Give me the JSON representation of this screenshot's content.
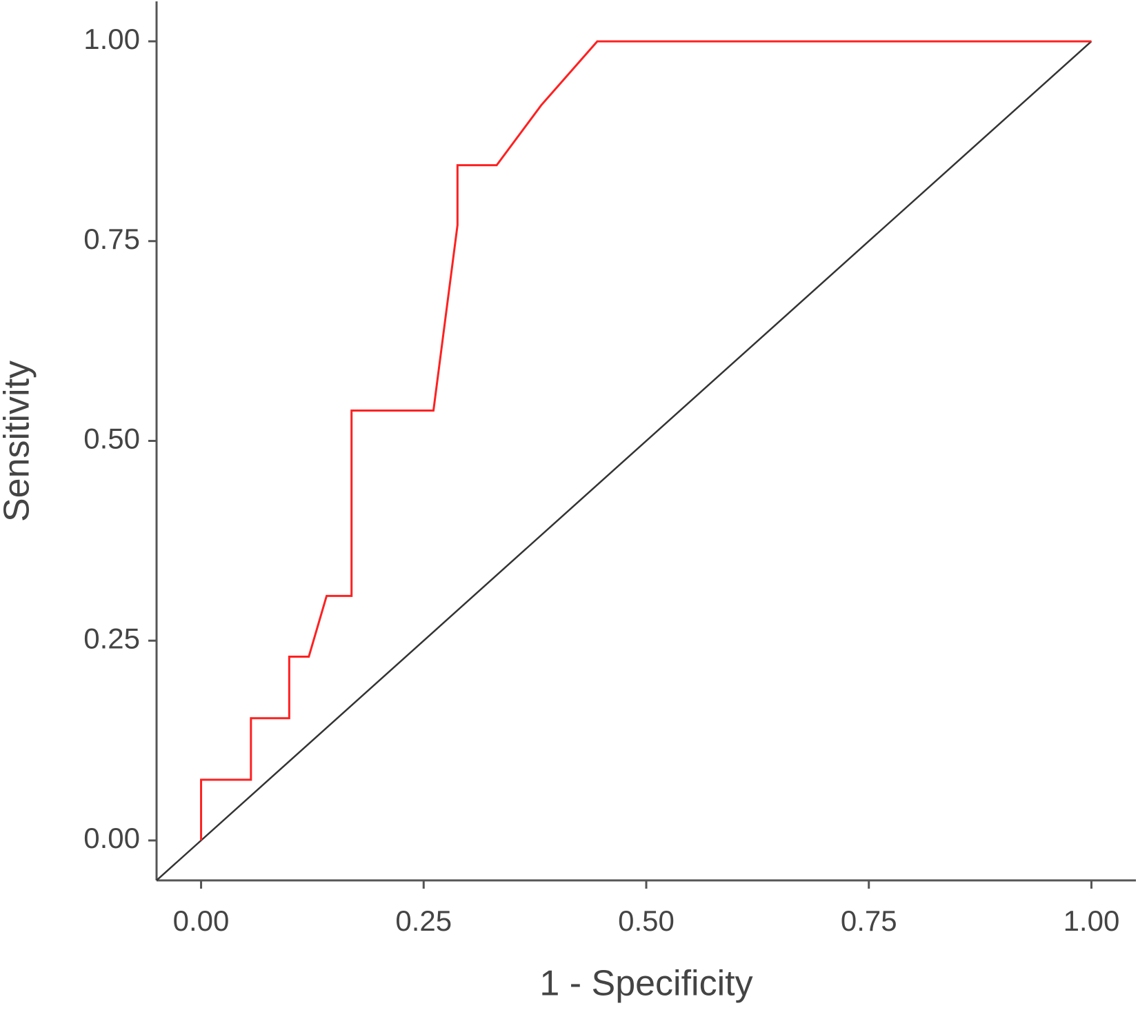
{
  "chart_data": {
    "type": "line",
    "xlabel": "1 - Specificity",
    "ylabel": "Sensitivity",
    "x": [
      0,
      0,
      0.056,
      0.056,
      0.099,
      0.099,
      0.121,
      0.141,
      0.169,
      0.169,
      0.261,
      0.288,
      0.288,
      0.332,
      0.382,
      0.445,
      1
    ],
    "values": [
      0,
      0.076,
      0.076,
      0.153,
      0.153,
      0.23,
      0.23,
      0.306,
      0.306,
      0.538,
      0.538,
      0.77,
      0.845,
      0.845,
      0.92,
      1,
      1
    ],
    "color": "#ff2020",
    "reference_color": "#333333",
    "xlim": [
      -0.05,
      1.05
    ],
    "ylim": [
      -0.05,
      1.05
    ],
    "xticks": [
      {
        "value": 0,
        "label": "0.00"
      },
      {
        "value": 0.25,
        "label": "0.25"
      },
      {
        "value": 0.5,
        "label": "0.50"
      },
      {
        "value": 0.75,
        "label": "0.75"
      },
      {
        "value": 1,
        "label": "1.00"
      }
    ],
    "yticks": [
      {
        "value": 0,
        "label": "0.00"
      },
      {
        "value": 0.25,
        "label": "0.25"
      },
      {
        "value": 0.5,
        "label": "0.50"
      },
      {
        "value": 0.75,
        "label": "0.75"
      },
      {
        "value": 1,
        "label": "1.00"
      }
    ]
  }
}
